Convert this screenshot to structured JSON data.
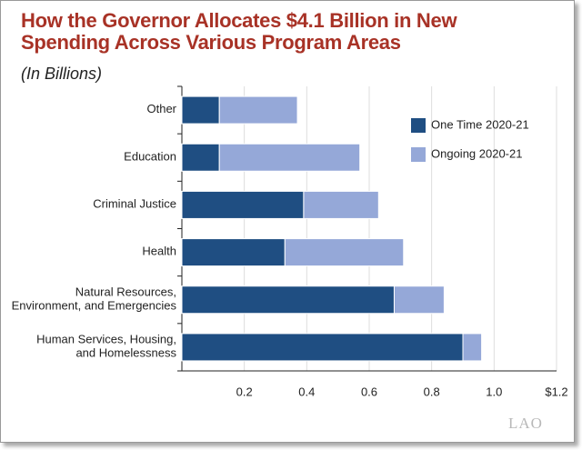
{
  "chart_data": {
    "type": "stacked-barh",
    "title": "How the Governor Allocates $4.1 Billion in New Spending Across Various Program Areas",
    "subtitle": "(In Billions)",
    "logo": "LAO",
    "categories": [
      "Other",
      "Education",
      "Criminal Justice",
      "Health",
      "Natural Resources,\nEnvironment, and Emergencies",
      "Human Services, Housing,\nand Homelessness"
    ],
    "series": [
      {
        "name": "One Time 2020-21",
        "color": "#1f4e82",
        "values": [
          0.12,
          0.12,
          0.39,
          0.33,
          0.68,
          0.9
        ]
      },
      {
        "name": "Ongoing 2020-21",
        "color": "#95a8d8",
        "values": [
          0.25,
          0.45,
          0.24,
          0.38,
          0.16,
          0.06
        ]
      }
    ],
    "xlim": [
      0,
      1.2
    ],
    "xticks": [
      0.2,
      0.4,
      0.6,
      0.8,
      {
        "value": 1,
        "label": "1.0"
      },
      {
        "value": 1.2,
        "label": "$1.2"
      }
    ],
    "grid": true
  }
}
